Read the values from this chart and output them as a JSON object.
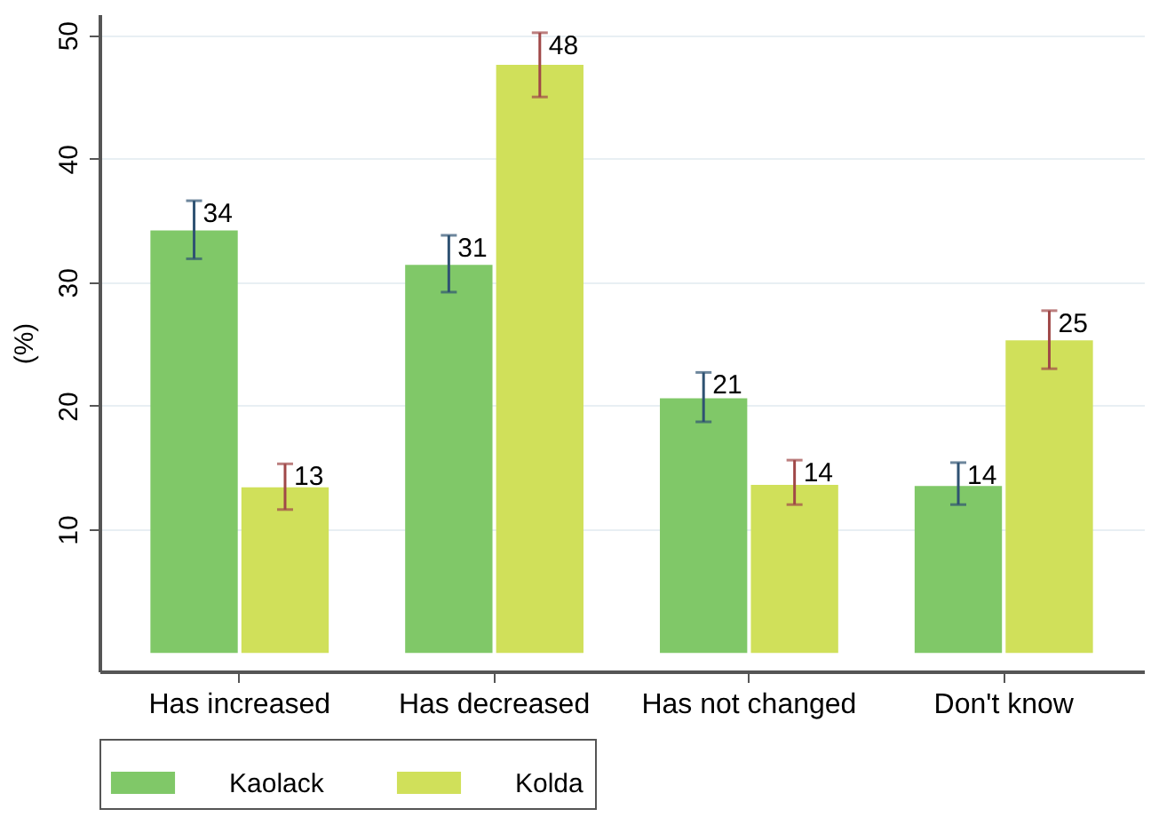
{
  "chart_data": {
    "type": "bar",
    "ylabel": "(%)",
    "categories": [
      "Has increased",
      "Has decreased",
      "Has not changed",
      "Don't know"
    ],
    "series": [
      {
        "name": "Kaolack",
        "color": "#80c868",
        "values": [
          34.2,
          31.4,
          20.6,
          13.5
        ],
        "errors": [
          [
            31.9,
            36.6
          ],
          [
            29.2,
            33.8
          ],
          [
            18.7,
            22.7
          ],
          [
            12.0,
            15.4
          ]
        ],
        "value_labels": [
          "34",
          "31",
          "21",
          "14"
        ]
      },
      {
        "name": "Kolda",
        "color": "#d0e05a",
        "values": [
          13.4,
          47.6,
          13.6,
          25.3
        ],
        "errors": [
          [
            11.6,
            15.3
          ],
          [
            45.0,
            50.2
          ],
          [
            12.0,
            15.6
          ],
          [
            23.0,
            27.7
          ]
        ],
        "value_labels": [
          "13",
          "48",
          "14",
          "25"
        ]
      }
    ],
    "ylim": [
      -1.5,
      51.7
    ],
    "yticks": [
      10,
      20,
      30,
      40,
      50
    ],
    "grid": "y",
    "legend": "bottom"
  }
}
